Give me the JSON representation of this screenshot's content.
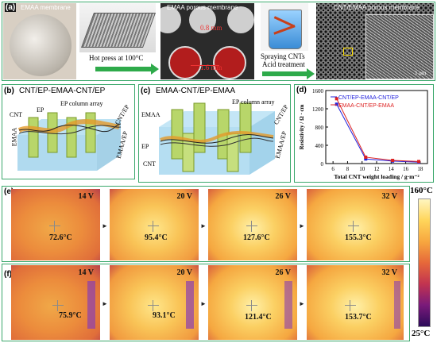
{
  "panel_a": {
    "label": "(a)",
    "emaa_membrane": "EMAA membrane",
    "hot_press": "Hot press at 100°C",
    "porous_membrane": "EMAA porous membrane",
    "dim_1": "0.8 mm",
    "dim_2": "1.6 mm",
    "spraying": "Spraying CNTs",
    "acid": "Acid treatment",
    "composite": "CNT/EMAA porous membrane",
    "scale": "1 μm"
  },
  "panel_b": {
    "label": "(b)",
    "title": "CNT/EP-EMAA-CNT/EP",
    "ep_column": "EP column array",
    "ep": "EP",
    "cnt": "CNT",
    "emaa": "EMAA",
    "cnt_ep": "CNT/EP",
    "emaa_ep": "EMAA/EP"
  },
  "panel_c": {
    "label": "(c)",
    "title": "EMAA-CNT/EP-EMAA",
    "ep_column": "EP column array",
    "emaa": "EMAA",
    "ep": "EP",
    "cnt": "CNT",
    "cnt_ep": "CNT/EP",
    "emaa_ep": "EMAA/EP"
  },
  "panel_d": {
    "label": "(d)",
    "chart_data": {
      "type": "line",
      "xlabel": "Total CNT weight loading / g·m⁻²",
      "ylabel": "Resistivity / Ω · cm",
      "xlim": [
        5,
        19
      ],
      "ylim": [
        0,
        1600
      ],
      "xticks": [
        "6",
        "8",
        "10",
        "12",
        "14",
        "16",
        "18"
      ],
      "yticks": [
        "0",
        "400",
        "800",
        "1200",
        "1600"
      ],
      "legend_position": "top-right",
      "series": [
        {
          "name": "CNT/EP-EMAA-CNT/EP",
          "color": "#2222dd",
          "x": [
            6.5,
            10.5,
            14.2,
            17.8
          ],
          "y": [
            1300,
            100,
            55,
            30
          ]
        },
        {
          "name": "EMAA-CNT/EP-EMAA",
          "color": "#dd2222",
          "x": [
            6.5,
            10.5,
            14.2,
            17.8
          ],
          "y": [
            1420,
            140,
            70,
            45
          ]
        }
      ]
    }
  },
  "panel_e": {
    "label": "(e)",
    "images": [
      {
        "volt": "14 V",
        "temp": "72.6°C"
      },
      {
        "volt": "20 V",
        "temp": "95.4°C"
      },
      {
        "volt": "26 V",
        "temp": "127.6°C"
      },
      {
        "volt": "32 V",
        "temp": "155.3°C"
      }
    ]
  },
  "panel_f": {
    "label": "(f)",
    "images": [
      {
        "volt": "14 V",
        "temp": "75.9°C"
      },
      {
        "volt": "20 V",
        "temp": "93.1°C"
      },
      {
        "volt": "26 V",
        "temp": "121.4°C"
      },
      {
        "volt": "32 V",
        "temp": "153.7°C"
      }
    ]
  },
  "colorbar": {
    "max": "160°C",
    "min": "25°C"
  }
}
